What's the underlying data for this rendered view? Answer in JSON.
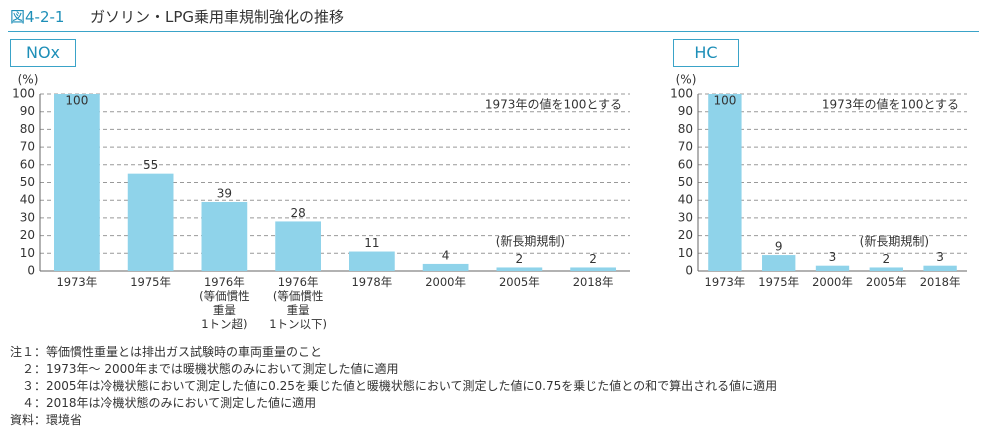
{
  "header": {
    "figure_no": "図4-2-1",
    "title": "ガソリン・LPG乗用車規制強化の推移"
  },
  "chart_data": [
    {
      "type": "bar",
      "title": "NOx",
      "y_unit": "(%)",
      "color": "#8fd3ea",
      "categories": [
        "1973年",
        "1975年",
        "1976年\n(等価慣性\n重量\n1トン超)",
        "1976年\n(等価慣性\n重量\n1トン以下)",
        "1978年",
        "2000年",
        "2005年",
        "2018年"
      ],
      "values": [
        100,
        55,
        39,
        28,
        11,
        4,
        2,
        2
      ],
      "ylim": [
        0,
        100
      ],
      "yticks": [
        0,
        10,
        20,
        30,
        40,
        50,
        60,
        70,
        80,
        90,
        100
      ],
      "grid": true,
      "annotations": [
        "1973年の値を100とする",
        "(新長期規制)"
      ]
    },
    {
      "type": "bar",
      "title": "HC",
      "y_unit": "(%)",
      "color": "#8fd3ea",
      "categories": [
        "1973年",
        "1975年",
        "2000年",
        "2005年",
        "2018年"
      ],
      "values": [
        100,
        9,
        3,
        2,
        3
      ],
      "ylim": [
        0,
        100
      ],
      "yticks": [
        0,
        10,
        20,
        30,
        40,
        50,
        60,
        70,
        80,
        90,
        100
      ],
      "grid": true,
      "annotations": [
        "1973年の値を100とする",
        "(新長期規制)"
      ]
    }
  ],
  "notes": [
    "注１：等価慣性重量とは排出ガス試験時の車両重量のこと",
    "　２：1973年～ 2000年までは暖機状態のみにおいて測定した値に適用",
    "　３：2005年は冷機状態において測定した値に0.25を乗じた値と暖機状態において測定した値に0.75を乗じた値との和で算出される値に適用",
    "　４：2018年は冷機状態のみにおいて測定した値に適用",
    "資料：環境省"
  ]
}
